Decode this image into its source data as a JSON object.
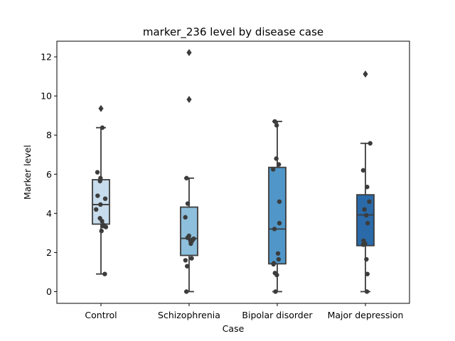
{
  "chart_data": {
    "type": "box",
    "title": "marker_236 level by disease case",
    "xlabel": "Case",
    "ylabel": "Marker level",
    "ylim": [
      -0.6,
      12.8
    ],
    "yticks": [
      0,
      2,
      4,
      6,
      8,
      10,
      12
    ],
    "grid": false,
    "categories": [
      "Control",
      "Schizophrenia",
      "Bipolar disorder",
      "Major depression"
    ],
    "colors": [
      "#c7dcec",
      "#8ebfdc",
      "#5096c9",
      "#2a6aa9"
    ],
    "edge_color": "#3c3c3c",
    "point_color": "#3c3c3c",
    "boxes": [
      {
        "q1": 3.45,
        "median": 4.45,
        "q3": 5.72,
        "whisker_low": 0.9,
        "whisker_high": 8.38,
        "outliers": [
          9.36
        ],
        "points": [
          0.9,
          3.1,
          3.3,
          3.35,
          3.4,
          3.6,
          3.75,
          4.2,
          4.45,
          4.75,
          4.9,
          5.65,
          5.8,
          6.1,
          8.38
        ]
      },
      {
        "q1": 1.85,
        "median": 2.72,
        "q3": 4.32,
        "whisker_low": 0.0,
        "whisker_high": 5.8,
        "outliers": [
          9.82,
          12.22
        ],
        "points": [
          0.0,
          1.3,
          1.6,
          1.7,
          2.45,
          2.6,
          2.6,
          2.7,
          2.75,
          2.85,
          3.8,
          4.5,
          5.8
        ]
      },
      {
        "q1": 1.42,
        "median": 3.2,
        "q3": 6.35,
        "whisker_low": 0.0,
        "whisker_high": 8.7,
        "outliers": [],
        "points": [
          0.0,
          0.85,
          0.95,
          1.4,
          1.45,
          1.65,
          1.95,
          3.2,
          3.5,
          4.6,
          6.25,
          6.5,
          6.8,
          8.5,
          8.7
        ]
      },
      {
        "q1": 2.35,
        "median": 3.92,
        "q3": 4.95,
        "whisker_low": 0.0,
        "whisker_high": 7.58,
        "outliers": [
          11.12
        ],
        "points": [
          0.0,
          0.9,
          1.65,
          2.4,
          2.45,
          2.6,
          3.5,
          3.9,
          4.2,
          4.6,
          5.35,
          6.2,
          7.58
        ]
      }
    ]
  }
}
